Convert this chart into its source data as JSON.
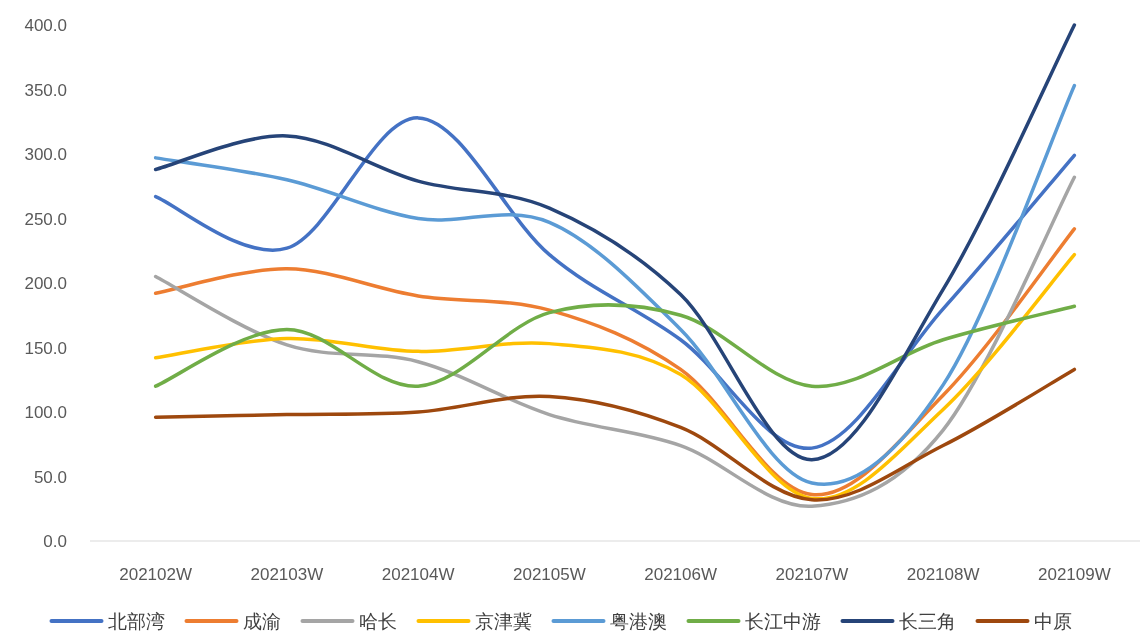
{
  "chart_data": {
    "type": "line",
    "categories": [
      "202102W",
      "202103W",
      "202104W",
      "202105W",
      "202106W",
      "202107W",
      "202108W",
      "202109W"
    ],
    "series": [
      {
        "name": "北部湾",
        "color": "#4472c4",
        "values": [
          267,
          227,
          328,
          222,
          156,
          72,
          180,
          299
        ]
      },
      {
        "name": "成渝",
        "color": "#ed7d31",
        "values": [
          192,
          211,
          190,
          179,
          133,
          36,
          113,
          242
        ]
      },
      {
        "name": "哈长",
        "color": "#a5a5a5",
        "values": [
          205,
          152,
          139,
          98,
          74,
          27,
          86,
          282
        ]
      },
      {
        "name": "京津冀",
        "color": "#ffc000",
        "values": [
          142,
          157,
          147,
          153,
          129,
          33,
          102,
          222
        ]
      },
      {
        "name": "粤港澳",
        "color": "#5b9bd5",
        "values": [
          297,
          280,
          250,
          247,
          164,
          45,
          121,
          353
        ]
      },
      {
        "name": "长江中游",
        "color": "#70ad47",
        "values": [
          120,
          164,
          120,
          177,
          175,
          120,
          156,
          182
        ]
      },
      {
        "name": "长三角",
        "color": "#264478",
        "values": [
          288,
          314,
          279,
          258,
          191,
          63,
          195,
          400
        ]
      },
      {
        "name": "中原",
        "color": "#9e480e",
        "values": [
          96,
          98,
          100,
          112,
          88,
          32,
          74,
          133
        ]
      }
    ],
    "ylim": [
      0,
      400
    ],
    "yticks": [
      {
        "value": 0,
        "label": "0.0"
      },
      {
        "value": 50,
        "label": "50.0"
      },
      {
        "value": 100,
        "label": "100.0"
      },
      {
        "value": 150,
        "label": "150.0"
      },
      {
        "value": 200,
        "label": "200.0"
      },
      {
        "value": 250,
        "label": "250.0"
      },
      {
        "value": 300,
        "label": "300.0"
      },
      {
        "value": 350,
        "label": "350.0"
      },
      {
        "value": 400,
        "label": "400.0"
      }
    ],
    "legend": "bottom"
  }
}
